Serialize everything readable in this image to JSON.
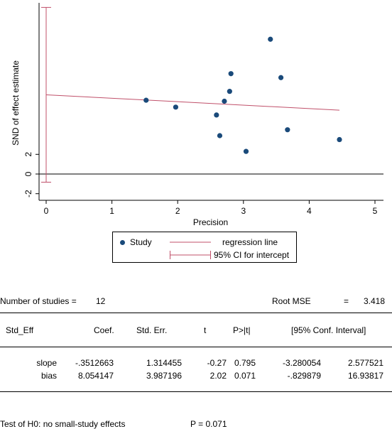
{
  "chart_data": {
    "type": "scatter",
    "xlabel": "Precision",
    "ylabel": "SND of effect estimate",
    "xlim": [
      0,
      5
    ],
    "xticks": [
      "0",
      "1",
      "2",
      "3",
      "4",
      "5"
    ],
    "yticks": [
      "-2",
      "0",
      "2"
    ],
    "points": [
      {
        "x": 1.52,
        "y": 7.5
      },
      {
        "x": 1.97,
        "y": 6.8
      },
      {
        "x": 2.59,
        "y": 6.0
      },
      {
        "x": 2.64,
        "y": 3.9
      },
      {
        "x": 2.71,
        "y": 7.4
      },
      {
        "x": 2.79,
        "y": 8.4
      },
      {
        "x": 2.81,
        "y": 10.2
      },
      {
        "x": 3.04,
        "y": 2.3
      },
      {
        "x": 3.41,
        "y": 13.7
      },
      {
        "x": 3.57,
        "y": 9.8
      },
      {
        "x": 3.67,
        "y": 4.5
      },
      {
        "x": 4.46,
        "y": 3.5
      }
    ],
    "regression": {
      "intercept": 8.054147,
      "slope": -0.3512663,
      "x_end": 4.46
    },
    "ci_intercept": [
      -0.829879,
      16.93817
    ],
    "legend": [
      "Study",
      "regression line",
      "95% CI for intercept"
    ],
    "colors": {
      "points": "#1a4a7a",
      "line": "#c0506a",
      "axis": "#000000"
    }
  },
  "output": {
    "n_label": "Number of studies =",
    "n_value": "12",
    "rmse_label": "Root MSE",
    "rmse_eq": "=",
    "rmse_value": "3.418",
    "headers": [
      "Std_Eff",
      "Coef.",
      "Std. Err.",
      "t",
      "P>|t|",
      "[95% Conf. Interval]"
    ],
    "rows": [
      {
        "name": "slope",
        "coef": "-.3512663",
        "se": "1.314455",
        "t": "-0.27",
        "p": "0.795",
        "lo": "-3.280054",
        "hi": "2.577521"
      },
      {
        "name": "bias",
        "coef": "8.054147",
        "se": "3.987196",
        "t": "2.02",
        "p": "0.071",
        "lo": "-.829879",
        "hi": "16.93817"
      }
    ],
    "test_label": "Test of H0: no small-study effects",
    "test_p": "P = 0.071"
  }
}
